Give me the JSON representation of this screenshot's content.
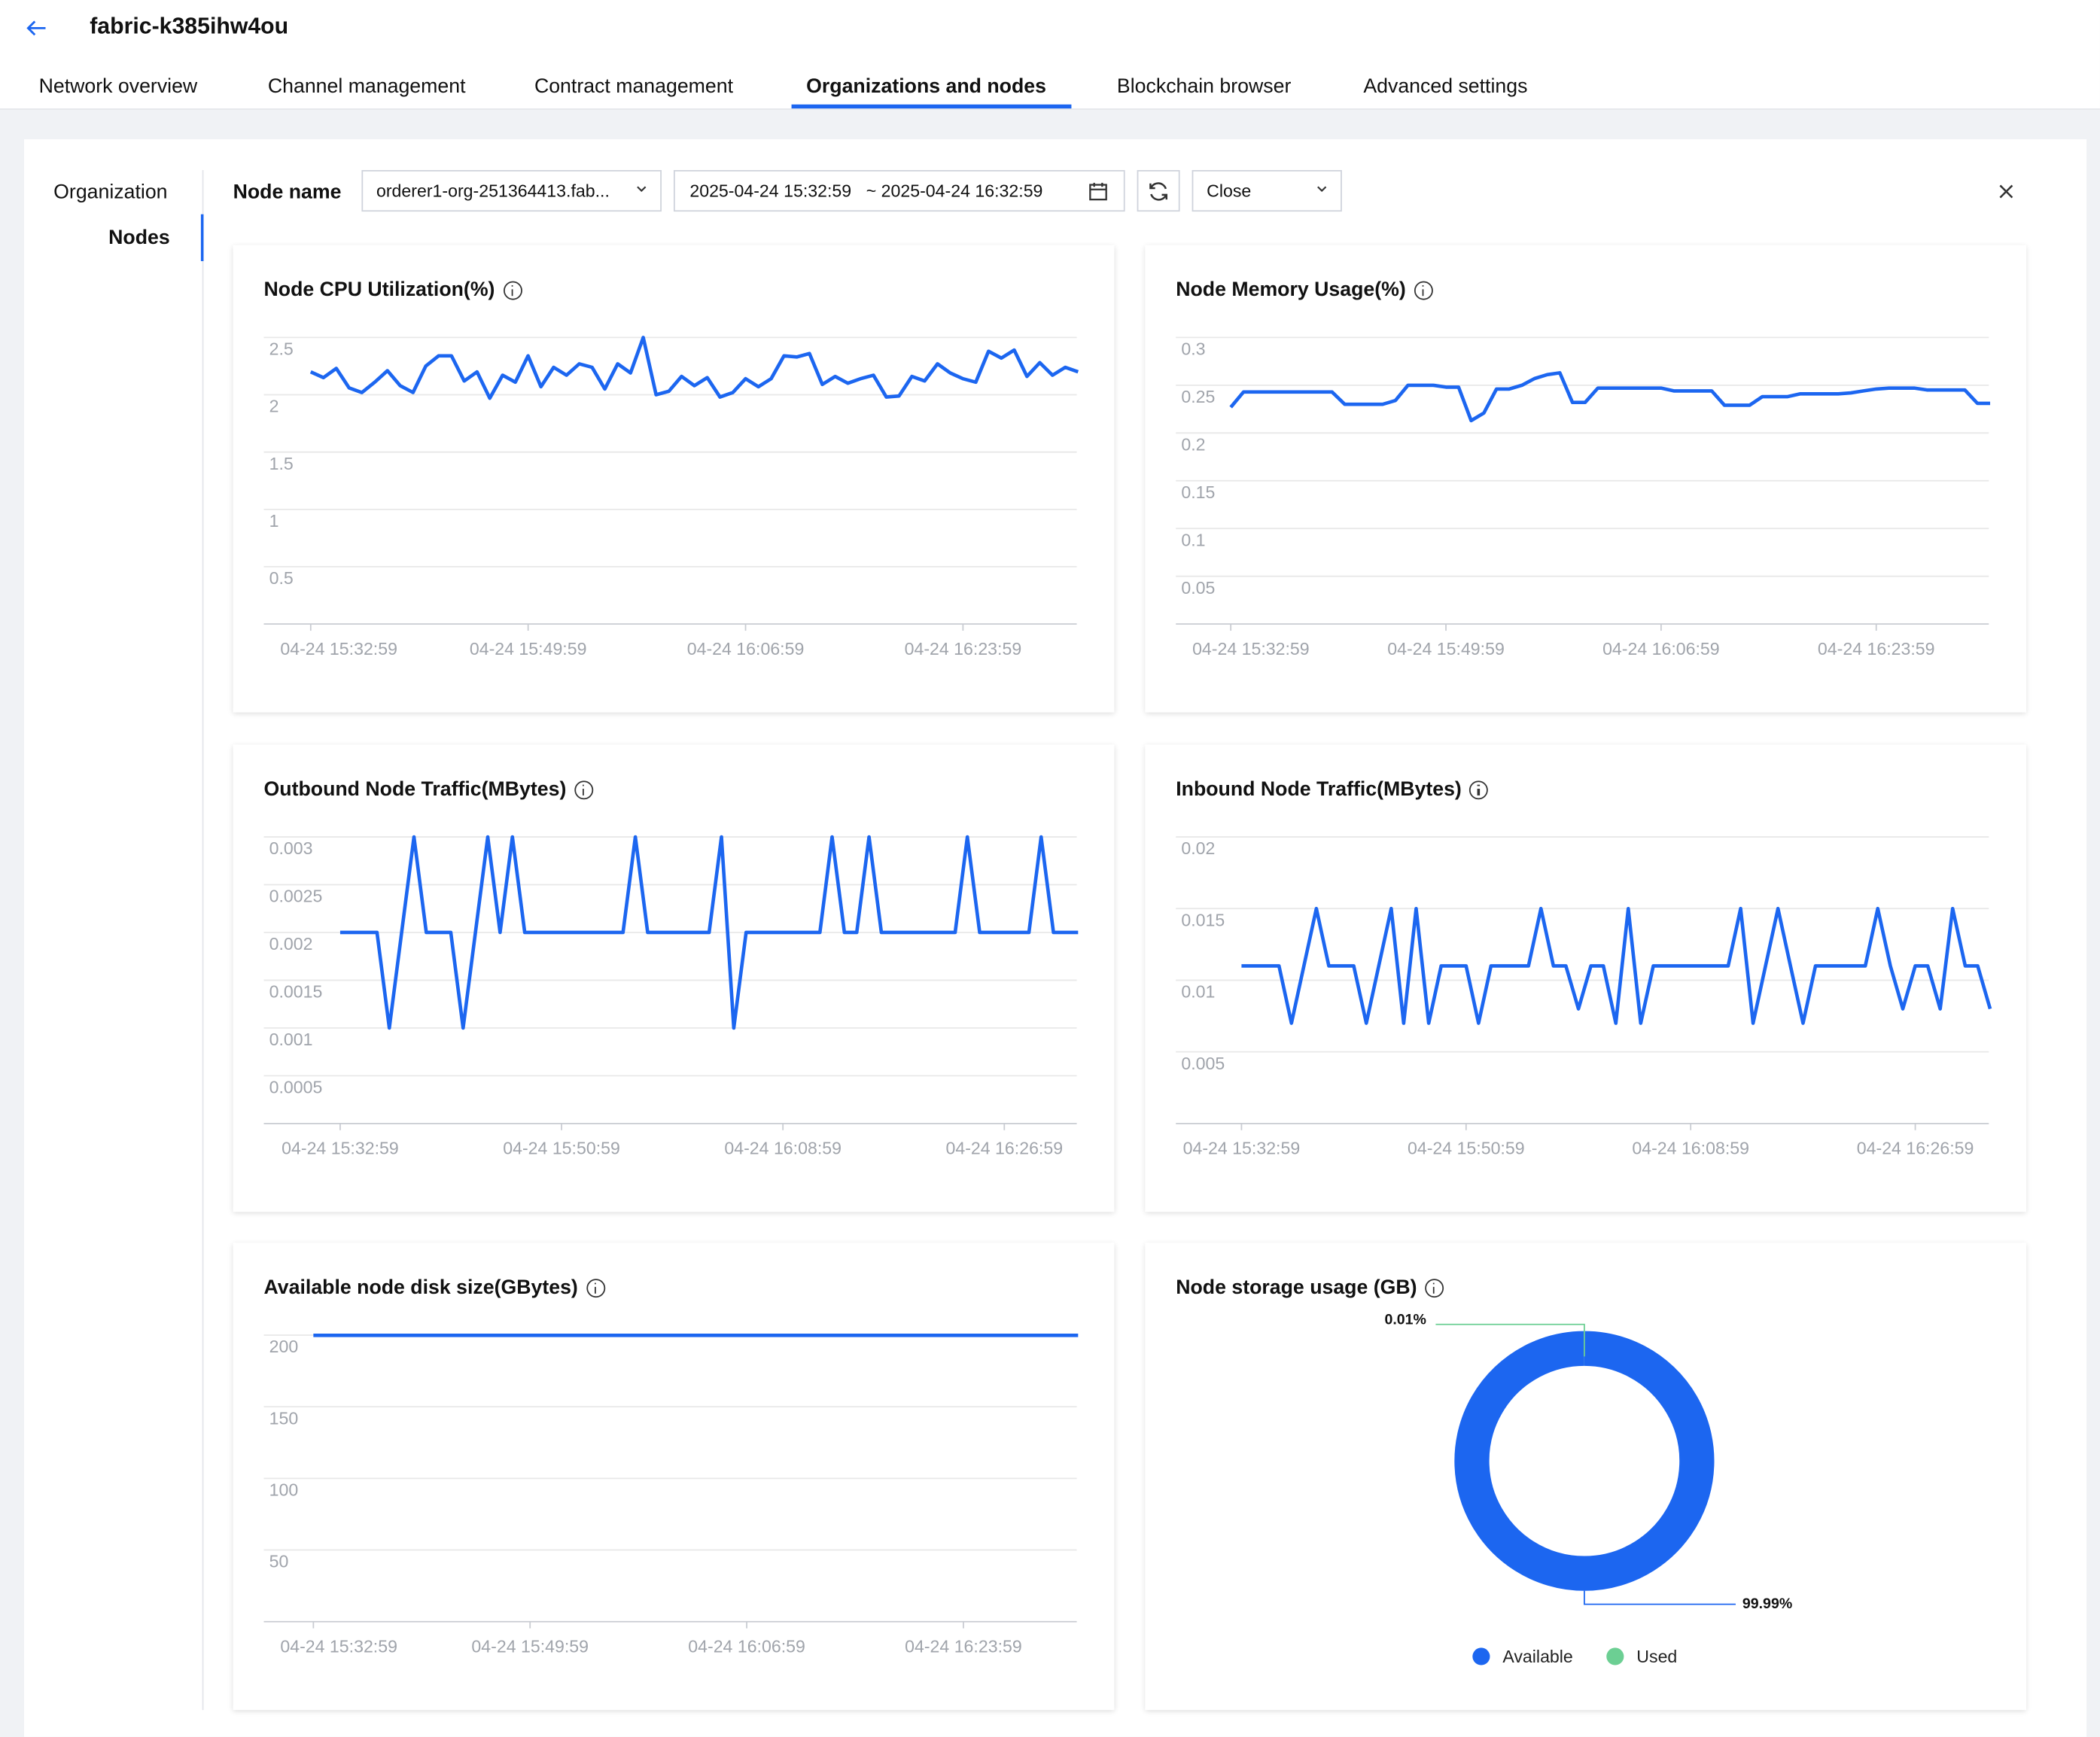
{
  "header": {
    "title": "fabric-k385ihw4ou",
    "back_icon": "arrow-left-icon"
  },
  "tabs": [
    {
      "label": "Network overview"
    },
    {
      "label": "Channel management"
    },
    {
      "label": "Contract management"
    },
    {
      "label": "Organizations and nodes",
      "active": true
    },
    {
      "label": "Blockchain browser"
    },
    {
      "label": "Advanced settings"
    }
  ],
  "sidebar": {
    "items": [
      {
        "label": "Organization"
      },
      {
        "label": "Nodes",
        "active": true
      }
    ]
  },
  "toolbar": {
    "node_name_label": "Node name",
    "node_name_value": "orderer1-org-251364413.fab...",
    "time_start": "2025-04-24 15:32:59",
    "time_end": "~ 2025-04-24 16:32:59",
    "auto_refresh_value": "Close",
    "icons": [
      "chevron-down-icon",
      "calendar-icon",
      "refresh-icon",
      "close-icon"
    ]
  },
  "colors": {
    "accent": "#1c66f0",
    "series": "#1c66f0",
    "used": "#6ccf93",
    "axis_text": "#a0a4ab",
    "grid": "#e8e8e8"
  },
  "chart_data": [
    {
      "type": "line",
      "title": "Node CPU Utilization(%)",
      "ylim": [
        0,
        2.5
      ],
      "yticks": [
        0.5,
        1,
        1.5,
        2,
        2.5
      ],
      "grid": true,
      "xlim": [
        "04-24 15:32:59",
        "04-24 16:32:59"
      ],
      "xticks": [
        "04-24 15:32:59",
        "04-24 15:49:59",
        "04-24 16:06:59",
        "04-24 16:23:59"
      ],
      "values": [
        2.2,
        2.15,
        2.23,
        2.06,
        2.02,
        2.11,
        2.21,
        2.08,
        2.02,
        2.25,
        2.34,
        2.34,
        2.12,
        2.2,
        1.97,
        2.17,
        2.11,
        2.34,
        2.07,
        2.24,
        2.17,
        2.27,
        2.24,
        2.05,
        2.27,
        2.19,
        2.5,
        2.0,
        2.03,
        2.16,
        2.08,
        2.15,
        1.98,
        2.02,
        2.14,
        2.07,
        2.14,
        2.34,
        2.33,
        2.36,
        2.09,
        2.16,
        2.1,
        2.14,
        2.17,
        1.98,
        1.99,
        2.16,
        2.12,
        2.27,
        2.19,
        2.14,
        2.11,
        2.38,
        2.32,
        2.39,
        2.16,
        2.28,
        2.17,
        2.24,
        2.2
      ]
    },
    {
      "type": "line",
      "title": "Node Memory Usage(%)",
      "ylim": [
        0,
        0.3
      ],
      "yticks": [
        0.05,
        0.1,
        0.15,
        0.2,
        0.25,
        0.3
      ],
      "grid": true,
      "xlim": [
        "04-24 15:32:59",
        "04-24 16:32:59"
      ],
      "xticks": [
        "04-24 15:32:59",
        "04-24 15:49:59",
        "04-24 16:06:59",
        "04-24 16:23:59"
      ],
      "values": [
        0.227,
        0.243,
        0.243,
        0.243,
        0.243,
        0.243,
        0.243,
        0.243,
        0.243,
        0.23,
        0.23,
        0.23,
        0.23,
        0.234,
        0.25,
        0.25,
        0.25,
        0.248,
        0.248,
        0.213,
        0.221,
        0.246,
        0.246,
        0.25,
        0.257,
        0.261,
        0.263,
        0.232,
        0.232,
        0.247,
        0.247,
        0.247,
        0.247,
        0.247,
        0.247,
        0.244,
        0.244,
        0.244,
        0.244,
        0.229,
        0.229,
        0.229,
        0.238,
        0.238,
        0.238,
        0.241,
        0.241,
        0.241,
        0.241,
        0.242,
        0.244,
        0.246,
        0.247,
        0.247,
        0.247,
        0.245,
        0.245,
        0.245,
        0.245,
        0.231,
        0.231
      ]
    },
    {
      "type": "line",
      "title": "Outbound Node Traffic(MBytes)",
      "ylim": [
        0,
        0.003
      ],
      "yticks": [
        0.0005,
        0.001,
        0.0015,
        0.002,
        0.0025,
        0.003
      ],
      "grid": true,
      "xlim": [
        "04-24 15:32:59",
        "04-24 16:32:59"
      ],
      "xticks": [
        "04-24 15:32:59",
        "04-24 15:50:59",
        "04-24 16:08:59",
        "04-24 16:26:59"
      ],
      "values": [
        0.002,
        0.002,
        0.002,
        0.002,
        0.001,
        0.002,
        0.003,
        0.002,
        0.002,
        0.002,
        0.001,
        0.002,
        0.003,
        0.002,
        0.003,
        0.002,
        0.002,
        0.002,
        0.002,
        0.002,
        0.002,
        0.002,
        0.002,
        0.002,
        0.003,
        0.002,
        0.002,
        0.002,
        0.002,
        0.002,
        0.002,
        0.003,
        0.001,
        0.002,
        0.002,
        0.002,
        0.002,
        0.002,
        0.002,
        0.002,
        0.003,
        0.002,
        0.002,
        0.003,
        0.002,
        0.002,
        0.002,
        0.002,
        0.002,
        0.002,
        0.002,
        0.003,
        0.002,
        0.002,
        0.002,
        0.002,
        0.002,
        0.003,
        0.002,
        0.002,
        0.002
      ]
    },
    {
      "type": "line",
      "title": "Inbound Node Traffic(MBytes)",
      "ylim": [
        0,
        0.02
      ],
      "yticks": [
        0.005,
        0.01,
        0.015,
        0.02
      ],
      "grid": true,
      "xlim": [
        "04-24 15:32:59",
        "04-24 16:32:59"
      ],
      "xticks": [
        "04-24 15:32:59",
        "04-24 15:50:59",
        "04-24 16:08:59",
        "04-24 16:26:59"
      ],
      "values": [
        0.011,
        0.011,
        0.011,
        0.011,
        0.007,
        0.011,
        0.015,
        0.011,
        0.011,
        0.011,
        0.007,
        0.011,
        0.015,
        0.007,
        0.015,
        0.007,
        0.011,
        0.011,
        0.011,
        0.007,
        0.011,
        0.011,
        0.011,
        0.011,
        0.015,
        0.011,
        0.011,
        0.008,
        0.011,
        0.011,
        0.007,
        0.015,
        0.007,
        0.011,
        0.011,
        0.011,
        0.011,
        0.011,
        0.011,
        0.011,
        0.015,
        0.007,
        0.011,
        0.015,
        0.011,
        0.007,
        0.011,
        0.011,
        0.011,
        0.011,
        0.011,
        0.015,
        0.011,
        0.008,
        0.011,
        0.011,
        0.008,
        0.015,
        0.011,
        0.011,
        0.008
      ]
    },
    {
      "type": "line",
      "title": "Available node disk size(GBytes)",
      "ylim": [
        0,
        200
      ],
      "yticks": [
        50,
        100,
        150,
        200
      ],
      "grid": true,
      "xlim": [
        "04-24 15:32:59",
        "04-24 16:32:59"
      ],
      "xticks": [
        "04-24 15:32:59",
        "04-24 15:49:59",
        "04-24 16:06:59",
        "04-24 16:23:59"
      ],
      "values": [
        199.8,
        199.8,
        199.8,
        199.8,
        199.8,
        199.8,
        199.8,
        199.8,
        199.8,
        199.8,
        199.8,
        199.8,
        199.8,
        199.8,
        199.8,
        199.8,
        199.8,
        199.8,
        199.8,
        199.8,
        199.8,
        199.8,
        199.8,
        199.8,
        199.8,
        199.8,
        199.8,
        199.8,
        199.8,
        199.8,
        199.8,
        199.8,
        199.8,
        199.8,
        199.8,
        199.8,
        199.8,
        199.8,
        199.8,
        199.8,
        199.8,
        199.8,
        199.8,
        199.8,
        199.8,
        199.8,
        199.8,
        199.8,
        199.8,
        199.8,
        199.8,
        199.8,
        199.8,
        199.8,
        199.8,
        199.8,
        199.8,
        199.8,
        199.8,
        199.8,
        199.8
      ]
    },
    {
      "type": "pie",
      "donut": true,
      "title": "Node storage usage (GB)",
      "legend": "bottom",
      "slices": [
        {
          "name": "Available",
          "percent": 99.99,
          "label": "99.99%",
          "color": "#1c66f0"
        },
        {
          "name": "Used",
          "percent": 0.01,
          "label": "0.01%",
          "color": "#6ccf93"
        }
      ]
    }
  ]
}
